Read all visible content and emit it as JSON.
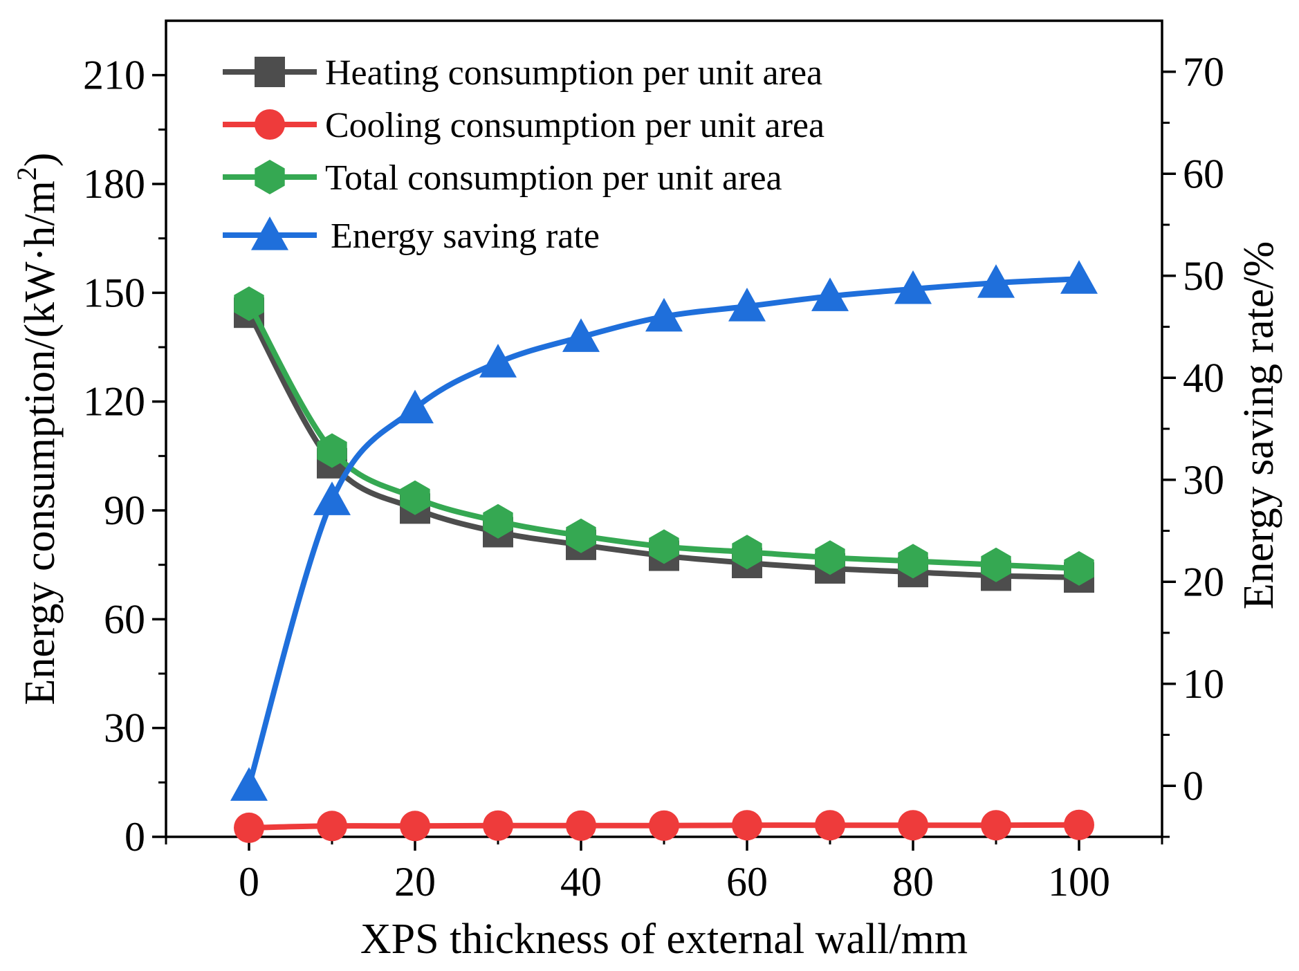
{
  "chart_data": {
    "type": "line",
    "title": "",
    "xlabel": "XPS thickness of external wall/mm",
    "ylabel_left_main": "Energy consumption/(kW·h/m",
    "ylabel_left_sup": "2",
    "ylabel_left_close": ")",
    "ylabel_right": "Energy saving rate/%",
    "x": [
      0,
      10,
      20,
      30,
      40,
      50,
      60,
      70,
      80,
      90,
      100
    ],
    "xlim": [
      -10,
      110
    ],
    "ylim_left": [
      0,
      225
    ],
    "ylim_right": [
      -5,
      75
    ],
    "xticks": [
      "0",
      "20",
      "40",
      "60",
      "80",
      "100"
    ],
    "yticks_left": [
      "0",
      "30",
      "60",
      "90",
      "120",
      "150",
      "180",
      "210"
    ],
    "yticks_right": [
      "0",
      "10",
      "20",
      "30",
      "40",
      "50",
      "60",
      "70"
    ],
    "legend_position": "top-left",
    "series": [
      {
        "name": "Heating consumption per unit area",
        "axis": "left",
        "color": "#4d4d4d",
        "marker": "square",
        "values": [
          144.5,
          103,
          90.5,
          84,
          80.5,
          77.5,
          75.5,
          74,
          73,
          72,
          71.5
        ]
      },
      {
        "name": "Cooling consumption per unit area",
        "axis": "left",
        "color": "#ee3b3b",
        "marker": "circle",
        "values": [
          2.5,
          3.0,
          3.0,
          3.1,
          3.1,
          3.1,
          3.2,
          3.2,
          3.2,
          3.2,
          3.3
        ]
      },
      {
        "name": "Total consumption per unit area",
        "axis": "left",
        "color": "#35a852",
        "marker": "hexagon",
        "values": [
          147,
          106.5,
          93.5,
          87,
          83,
          80,
          78.5,
          77,
          76,
          75,
          74
        ]
      },
      {
        "name": "Energy saving rate",
        "axis": "right",
        "color": "#1f6fdb",
        "marker": "triangle",
        "values": [
          0,
          28,
          37,
          41.5,
          44,
          46,
          47,
          48,
          48.7,
          49.3,
          49.7
        ]
      }
    ]
  }
}
